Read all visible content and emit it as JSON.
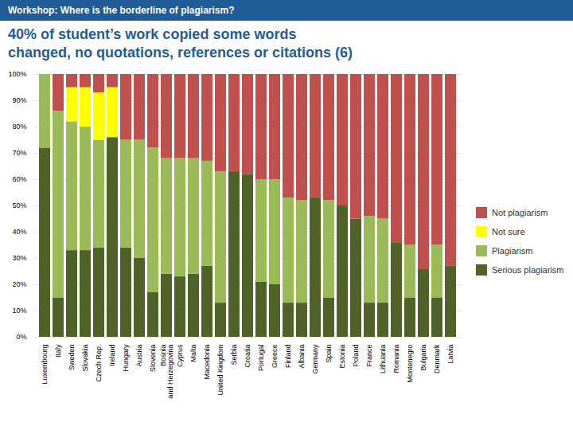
{
  "chart_data": {
    "type": "bar",
    "stacked": true,
    "subtitle": "Workshop: Where is the borderline of plagiarism?",
    "title": "40% of student’s work copied some words\nchanged, no quotations, references or citations (6)",
    "categories": [
      "Luxembourg",
      "Italy",
      "Sweden",
      "Slovakia",
      "Czech Rep.",
      "Ireland",
      "Hungary",
      "Austria",
      "Slovenia",
      "Bosnia\nand Herzegovina",
      "Cyprus",
      "Malta",
      "Macedonia",
      "United Kingdom",
      "Serbia",
      "Croatia",
      "Portugal",
      "Greece",
      "Finland",
      "Albania",
      "Germany",
      "Spain",
      "Estonia",
      "Poland",
      "France",
      "Lithuania",
      "Romania",
      "Montenegro",
      "Bulgaria",
      "Denmark",
      "Latvia"
    ],
    "series": [
      {
        "name": "Serious plagiarism",
        "color": "#4f6228",
        "values": [
          72,
          15,
          33,
          33,
          34,
          76,
          34,
          30,
          17,
          24,
          23,
          24,
          27,
          13,
          63,
          62,
          21,
          20,
          13,
          13,
          53,
          15,
          50,
          45,
          13,
          13,
          36,
          15,
          26,
          15,
          27
        ]
      },
      {
        "name": "Plagiarism",
        "color": "#9bbb59",
        "values": [
          28,
          71,
          49,
          47,
          41,
          0,
          41,
          45,
          55,
          44,
          45,
          44,
          40,
          50,
          0,
          0,
          39,
          40,
          40,
          39,
          0,
          37,
          0,
          0,
          33,
          32,
          0,
          20,
          0,
          20,
          0
        ]
      },
      {
        "name": "Not sure",
        "color": "#ffff00",
        "values": [
          0,
          0,
          13,
          15,
          18,
          19,
          0,
          0,
          0,
          0,
          0,
          0,
          0,
          0,
          0,
          0,
          0,
          0,
          0,
          0,
          0,
          0,
          0,
          0,
          0,
          0,
          0,
          0,
          0,
          0,
          0
        ]
      },
      {
        "name": "Not plagiarism",
        "color": "#c0504d",
        "values": [
          0,
          14,
          5,
          5,
          7,
          5,
          25,
          25,
          28,
          32,
          32,
          32,
          33,
          37,
          37,
          38,
          40,
          40,
          47,
          48,
          47,
          48,
          50,
          55,
          54,
          55,
          64,
          65,
          74,
          65,
          73
        ]
      }
    ],
    "ylim": [
      0,
      100
    ],
    "yticks": [
      {
        "value": 0,
        "label": "0%"
      },
      {
        "value": 10,
        "label": "10%"
      },
      {
        "value": 20,
        "label": "20%"
      },
      {
        "value": 30,
        "label": "30%"
      },
      {
        "value": 40,
        "label": "40%"
      },
      {
        "value": 50,
        "label": "50%"
      },
      {
        "value": 60,
        "label": "60%"
      },
      {
        "value": 70,
        "label": "70%"
      },
      {
        "value": 80,
        "label": "80%"
      },
      {
        "value": 90,
        "label": "90%"
      },
      {
        "value": 100,
        "label": "100%"
      }
    ],
    "grid": true,
    "legend": "right"
  }
}
